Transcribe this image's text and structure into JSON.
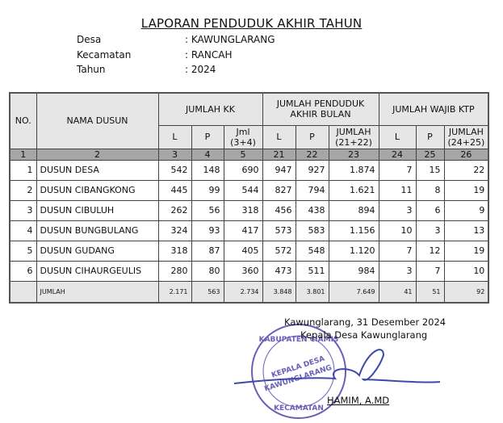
{
  "title": "LAPORAN PENDUDUK AKHIR TAHUN",
  "info": [
    {
      "label": "Desa",
      "value": ": KAWUNGLARANG"
    },
    {
      "label": "Kecamatan",
      "value": ": RANCAH"
    },
    {
      "label": "Tahun",
      "value": ": 2024"
    }
  ],
  "table": {
    "h_no": "NO.",
    "h_nama": "NAMA DUSUN",
    "h_kk": "JUMLAH KK",
    "h_penduduk": "JUMLAH PENDUDUK AKHIR BULAN",
    "h_ktp": "JUMLAH WAJIB KTP",
    "sub": [
      "L",
      "P",
      "Jml (3+4)",
      "L",
      "P",
      "JUMLAH (21+22)",
      "L",
      "P",
      "JUMLAH (24+25)"
    ],
    "col_numbers": [
      "1",
      "2",
      "3",
      "4",
      "5",
      "21",
      "22",
      "23",
      "24",
      "25",
      "26"
    ],
    "rows": [
      [
        "1",
        "DUSUN DESA",
        "542",
        "148",
        "690",
        "947",
        "927",
        "1.874",
        "7",
        "15",
        "22"
      ],
      [
        "2",
        "DUSUN CIBANGKONG",
        "445",
        "99",
        "544",
        "827",
        "794",
        "1.621",
        "11",
        "8",
        "19"
      ],
      [
        "3",
        "DUSUN CIBULUH",
        "262",
        "56",
        "318",
        "456",
        "438",
        "894",
        "3",
        "6",
        "9"
      ],
      [
        "4",
        "DUSUN BUNGBULANG",
        "324",
        "93",
        "417",
        "573",
        "583",
        "1.156",
        "10",
        "3",
        "13"
      ],
      [
        "5",
        "DUSUN GUDANG",
        "318",
        "87",
        "405",
        "572",
        "548",
        "1.120",
        "7",
        "12",
        "19"
      ],
      [
        "6",
        "DUSUN CIHAURGEULIS",
        "280",
        "80",
        "360",
        "473",
        "511",
        "984",
        "3",
        "7",
        "10"
      ]
    ],
    "total": [
      "",
      "JUMLAH",
      "2.171",
      "563",
      "2.734",
      "3.848",
      "3.801",
      "7.649",
      "41",
      "51",
      "92"
    ]
  },
  "signature": {
    "place_date": "Kawunglarang, 31 Desember 2024",
    "position": "Kepala Desa Kawunglarang",
    "name": "HAMIM, A.MD",
    "stamp_text": "PEMERINTAH KABUPATEN CIAMIS • KECAMATAN RANCAH • KEPALA DESA KAWUNGLARANG",
    "stamp_color": "#6a5fb8"
  }
}
